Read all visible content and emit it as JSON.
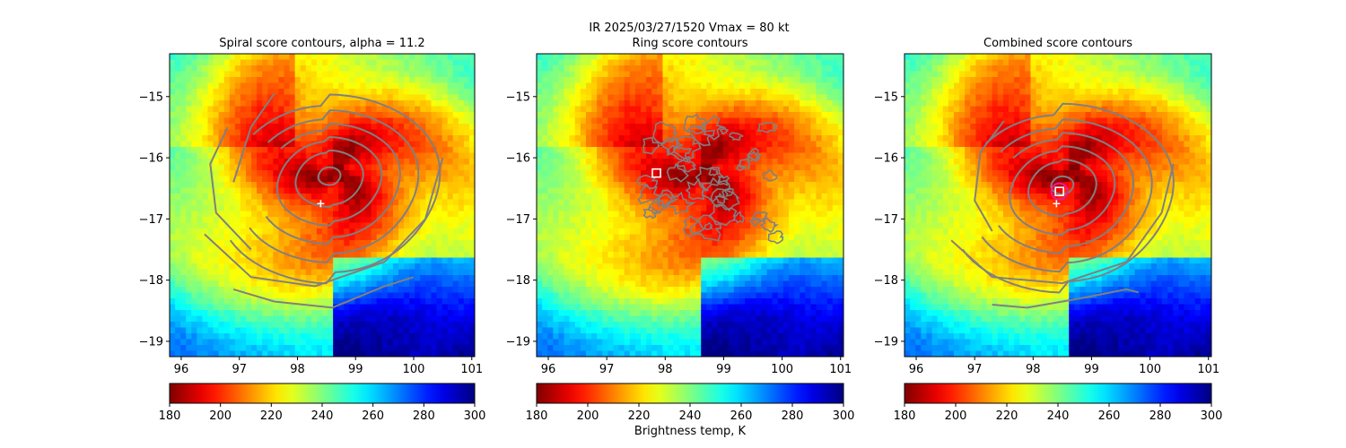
{
  "figure": {
    "suptitle": "IR  2025/03/27/1520    Vmax = 80 kt",
    "colorbar_label": "Brightness temp, K",
    "colormap": "jet_r",
    "colorbar_ticks": [
      180,
      200,
      220,
      240,
      260,
      280,
      300
    ]
  },
  "chart_data": [
    {
      "type": "heatmap",
      "title": "Spiral score contours, alpha = 11.2",
      "xlim": [
        95.8,
        101.05
      ],
      "ylim": [
        -19.25,
        -14.3
      ],
      "xticks": [
        96,
        97,
        98,
        99,
        100,
        101
      ],
      "yticks": [
        -15,
        -16,
        -17,
        -18,
        -19
      ],
      "color_range": [
        180,
        300
      ],
      "contours": "spiral score contours (gray)",
      "markers": [
        {
          "kind": "plus",
          "color": "#ffffff",
          "x": 98.4,
          "y": -16.75
        }
      ]
    },
    {
      "type": "heatmap",
      "title": "Ring score contours",
      "xlim": [
        95.8,
        101.05
      ],
      "ylim": [
        -19.25,
        -14.3
      ],
      "xticks": [
        96,
        97,
        98,
        99,
        100,
        101
      ],
      "yticks": [
        -15,
        -16,
        -17,
        -18,
        -19
      ],
      "color_range": [
        180,
        300
      ],
      "contours": "ring score contours (gray)",
      "markers": [
        {
          "kind": "square",
          "color": "#ffffff",
          "x": 97.85,
          "y": -16.25
        }
      ]
    },
    {
      "type": "heatmap",
      "title": "Combined score contours",
      "xlim": [
        95.8,
        101.05
      ],
      "ylim": [
        -19.25,
        -14.3
      ],
      "xticks": [
        96,
        97,
        98,
        99,
        100,
        101
      ],
      "yticks": [
        -15,
        -16,
        -17,
        -18,
        -19
      ],
      "color_range": [
        180,
        300
      ],
      "contours": "combined score contours (gray)",
      "markers": [
        {
          "kind": "plus",
          "color": "#ffffff",
          "x": 98.4,
          "y": -16.75
        },
        {
          "kind": "square",
          "color": "#ffffff",
          "x": 98.45,
          "y": -16.55
        },
        {
          "kind": "circle",
          "color": "#e0209a",
          "x": 98.45,
          "y": -16.55
        }
      ]
    }
  ]
}
